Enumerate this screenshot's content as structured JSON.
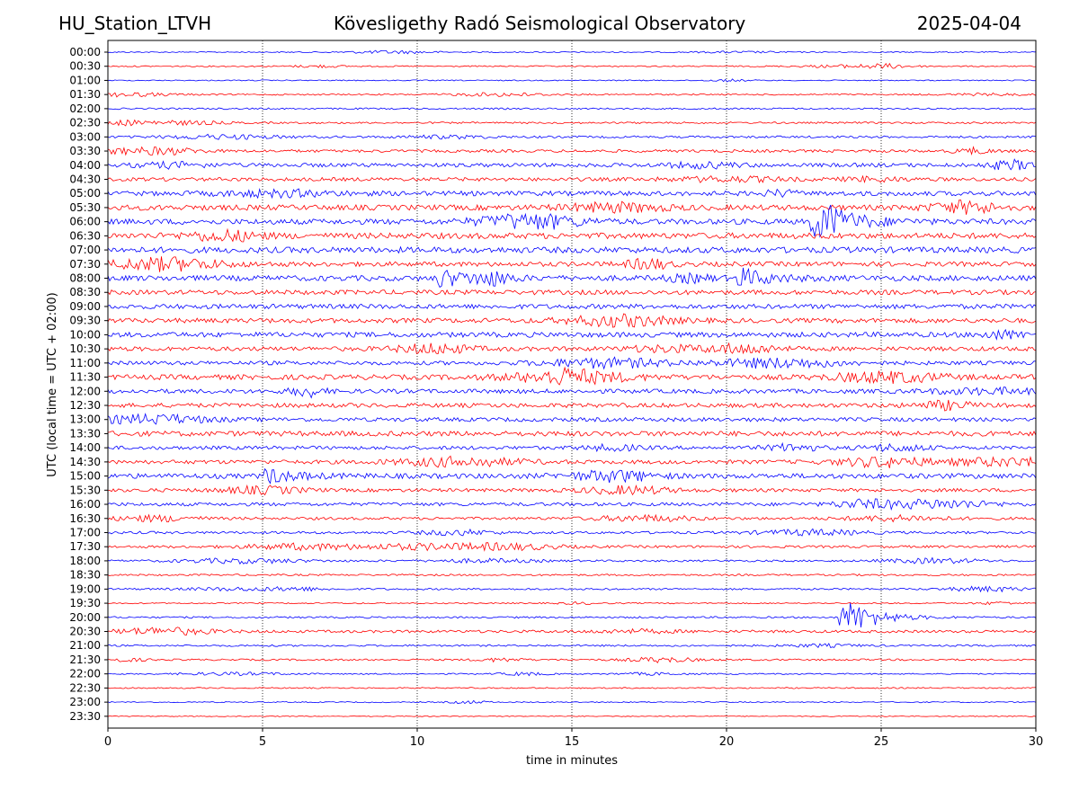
{
  "header": {
    "station": "HU_Station_LTVH",
    "observatory": "Kövesligethy Radó Seismological Observatory",
    "date": "2025-04-04"
  },
  "chart_data": {
    "type": "line",
    "title": "Kövesligethy Radó Seismological Observatory",
    "xlabel": "time in minutes",
    "ylabel": "UTC (local time = UTC + 02:00)",
    "xlim": [
      0,
      30
    ],
    "xticks": [
      0,
      5,
      10,
      15,
      20,
      25,
      30
    ],
    "grid": "vertical dotted at x ticks",
    "rows": [
      "00:00",
      "00:30",
      "01:00",
      "01:30",
      "02:00",
      "02:30",
      "03:00",
      "03:30",
      "04:00",
      "04:30",
      "05:00",
      "05:30",
      "06:00",
      "06:30",
      "07:00",
      "07:30",
      "08:00",
      "08:30",
      "09:00",
      "09:30",
      "10:00",
      "10:30",
      "11:00",
      "11:30",
      "12:00",
      "12:30",
      "13:00",
      "13:30",
      "14:00",
      "14:30",
      "15:00",
      "15:30",
      "16:00",
      "16:30",
      "17:00",
      "17:30",
      "18:00",
      "18:30",
      "19:00",
      "19:30",
      "20:00",
      "20:30",
      "21:00",
      "21:30",
      "22:00",
      "22:30",
      "23:00",
      "23:30"
    ],
    "trace_colors": [
      "#0000ff",
      "#ff0000"
    ],
    "noise_levels": [
      0.6,
      0.7,
      0.6,
      0.8,
      0.9,
      1.0,
      1.2,
      1.6,
      2.2,
      2.0,
      2.6,
      3.0,
      3.0,
      3.2,
      3.3,
      2.6,
      3.0,
      2.6,
      2.6,
      2.6,
      2.8,
      2.4,
      2.2,
      2.8,
      2.4,
      2.4,
      2.2,
      2.8,
      2.0,
      2.2,
      2.8,
      1.9,
      1.9,
      1.5,
      1.4,
      1.4,
      1.1,
      1.0,
      1.0,
      0.7,
      1.0,
      1.5,
      1.0,
      1.0,
      0.7,
      0.7,
      0.6,
      0.5
    ],
    "events": [
      {
        "row": "06:00",
        "minute": 22.7,
        "amplitude": 16
      },
      {
        "row": "06:00",
        "minute": 23.0,
        "amplitude": 14
      },
      {
        "row": "08:00",
        "minute": 10.7,
        "amplitude": 10
      },
      {
        "row": "08:00",
        "minute": 20.4,
        "amplitude": 11
      },
      {
        "row": "15:00",
        "minute": 5.1,
        "amplitude": 8
      },
      {
        "row": "20:00",
        "minute": 23.7,
        "amplitude": 12
      },
      {
        "row": "20:00",
        "minute": 24.0,
        "amplitude": 10
      }
    ]
  }
}
